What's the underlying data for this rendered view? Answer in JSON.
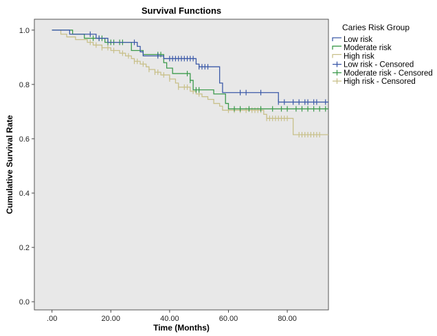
{
  "chart_data": {
    "type": "line",
    "title": "Survival Functions",
    "xlabel": "Time (Months)",
    "ylabel": "Cumulative Survival Rate",
    "xlim": [
      -6,
      94
    ],
    "ylim": [
      -0.03,
      1.04
    ],
    "x_ticks": [
      ".00",
      "20.00",
      "40.00",
      "60.00",
      "80.00"
    ],
    "x_tick_values": [
      0,
      20,
      40,
      60,
      80
    ],
    "y_ticks": [
      "0.0",
      "0.2",
      "0.4",
      "0.6",
      "0.8",
      "1.0"
    ],
    "y_tick_values": [
      0,
      0.2,
      0.4,
      0.6,
      0.8,
      1.0
    ],
    "grid": false,
    "background": "#e8e8e8",
    "legend_title": "Caries Risk Group",
    "legend_position": "right",
    "legend_labels": [
      "Low risk",
      "Moderate risk",
      "High risk",
      "Low risk - Censored",
      "Moderate risk - Censored",
      "High risk - Censored"
    ],
    "series": [
      {
        "name": "Low risk",
        "color": "#3c5aa8",
        "steps": [
          [
            0,
            1.0
          ],
          [
            6,
            0.985
          ],
          [
            15,
            0.97
          ],
          [
            19,
            0.955
          ],
          [
            29,
            0.94
          ],
          [
            30,
            0.92
          ],
          [
            31,
            0.905
          ],
          [
            38,
            0.895
          ],
          [
            49,
            0.875
          ],
          [
            50,
            0.865
          ],
          [
            57,
            0.805
          ],
          [
            58,
            0.77
          ],
          [
            77,
            0.735
          ],
          [
            94,
            0.735
          ]
        ],
        "censored": [
          13,
          16,
          28,
          36,
          40,
          41,
          42,
          43,
          44,
          45,
          46,
          47,
          48,
          50,
          51,
          52,
          53,
          64,
          66,
          71,
          77,
          79,
          82,
          84,
          86,
          87,
          89,
          90,
          93
        ]
      },
      {
        "name": "Moderate risk",
        "color": "#3c9a4c",
        "steps": [
          [
            0,
            1.0
          ],
          [
            7,
            0.985
          ],
          [
            11,
            0.97
          ],
          [
            18,
            0.955
          ],
          [
            27,
            0.925
          ],
          [
            31,
            0.91
          ],
          [
            38,
            0.88
          ],
          [
            39,
            0.86
          ],
          [
            41,
            0.84
          ],
          [
            47,
            0.815
          ],
          [
            48,
            0.78
          ],
          [
            55,
            0.765
          ],
          [
            59,
            0.73
          ],
          [
            60,
            0.71
          ],
          [
            94,
            0.71
          ]
        ],
        "censored": [
          14,
          16,
          17,
          19,
          20,
          21,
          23,
          24,
          36,
          37,
          46,
          47,
          49,
          50,
          62,
          64,
          67,
          71,
          75,
          78,
          80,
          83,
          85,
          87,
          89,
          91,
          93
        ]
      },
      {
        "name": "High risk",
        "color": "#c8c08a",
        "steps": [
          [
            0,
            1.0
          ],
          [
            3,
            0.985
          ],
          [
            5,
            0.975
          ],
          [
            8,
            0.965
          ],
          [
            12,
            0.955
          ],
          [
            14,
            0.945
          ],
          [
            17,
            0.935
          ],
          [
            20,
            0.925
          ],
          [
            23,
            0.915
          ],
          [
            25,
            0.905
          ],
          [
            27,
            0.895
          ],
          [
            28,
            0.885
          ],
          [
            30,
            0.875
          ],
          [
            32,
            0.865
          ],
          [
            33,
            0.855
          ],
          [
            35,
            0.845
          ],
          [
            37,
            0.835
          ],
          [
            40,
            0.82
          ],
          [
            42,
            0.805
          ],
          [
            43,
            0.79
          ],
          [
            47,
            0.775
          ],
          [
            49,
            0.765
          ],
          [
            51,
            0.755
          ],
          [
            53,
            0.745
          ],
          [
            55,
            0.73
          ],
          [
            57,
            0.72
          ],
          [
            58,
            0.705
          ],
          [
            72,
            0.69
          ],
          [
            73,
            0.675
          ],
          [
            82,
            0.615
          ],
          [
            94,
            0.615
          ]
        ],
        "censored": [
          13,
          15,
          17,
          19,
          21,
          24,
          26,
          28,
          29,
          31,
          33,
          35,
          36,
          38,
          40,
          43,
          45,
          46,
          48,
          50,
          60,
          62,
          64,
          66,
          68,
          69,
          70,
          71,
          73,
          74,
          75,
          76,
          77,
          78,
          79,
          80,
          84,
          85,
          86,
          87,
          88,
          89,
          90,
          91
        ]
      }
    ]
  }
}
